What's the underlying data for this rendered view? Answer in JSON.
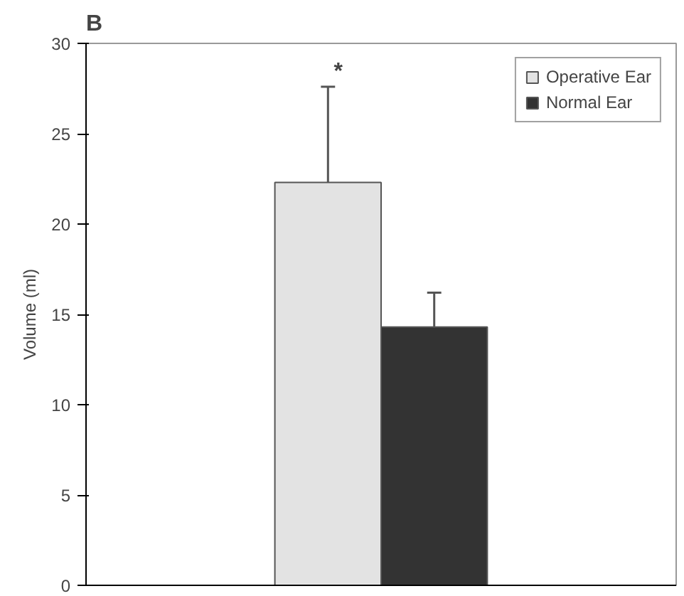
{
  "chart_data": {
    "type": "bar",
    "title": "B",
    "ylabel": "Volume (ml)",
    "categories": [
      null
    ],
    "series": [
      {
        "name": "Operative Ear",
        "color": "#e3e3e3",
        "values": [
          22.3
        ],
        "errors": [
          [
            22.3,
            27.6
          ]
        ]
      },
      {
        "name": "Normal Ear",
        "color": "#333333",
        "values": [
          14.3
        ],
        "errors": [
          [
            14.3,
            16.2
          ]
        ]
      }
    ],
    "ylim": [
      0,
      30
    ],
    "yticks": [
      0,
      5,
      10,
      15,
      20,
      25,
      30
    ],
    "grid": false,
    "legend": "top right",
    "annotations": [
      "*"
    ]
  }
}
